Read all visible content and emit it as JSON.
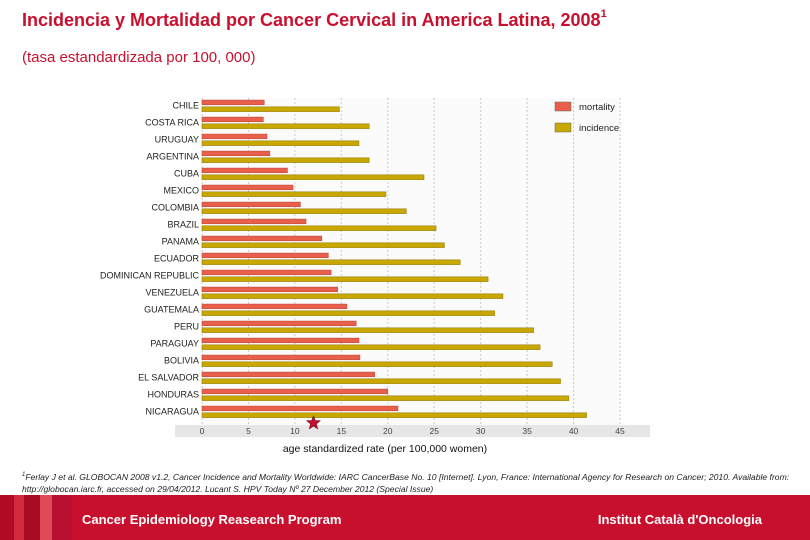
{
  "header": {
    "title": "Incidencia y Mortalidad por Cancer Cervical in America Latina, 2008",
    "title_sup": "1",
    "subtitle": "(tasa estandardizada por 100, 000)"
  },
  "chart_data": {
    "type": "bar",
    "orientation": "horizontal",
    "categories": [
      "CHILE",
      "COSTA RICA",
      "URUGUAY",
      "ARGENTINA",
      "CUBA",
      "MEXICO",
      "COLOMBIA",
      "BRAZIL",
      "PANAMA",
      "ECUADOR",
      "DOMINICAN REPUBLIC",
      "VENEZUELA",
      "GUATEMALA",
      "PERU",
      "PARAGUAY",
      "BOLIVIA",
      "EL SALVADOR",
      "HONDURAS",
      "NICARAGUA"
    ],
    "series": [
      {
        "name": "mortality",
        "color": "#e8604c",
        "values": [
          6.7,
          6.6,
          7.0,
          7.3,
          9.2,
          9.8,
          10.6,
          11.2,
          12.9,
          13.6,
          13.9,
          14.6,
          15.6,
          16.6,
          16.9,
          17.0,
          18.6,
          20.0,
          21.1
        ]
      },
      {
        "name": "incidence",
        "color": "#c8a800",
        "values": [
          14.8,
          18.0,
          16.9,
          18.0,
          23.9,
          19.8,
          22.0,
          25.2,
          26.1,
          27.8,
          30.8,
          32.4,
          31.5,
          35.7,
          36.4,
          37.7,
          38.6,
          39.5,
          41.4
        ]
      }
    ],
    "xlabel": "age standardized rate (per 100,000 women)",
    "xlim": [
      0,
      45
    ],
    "xticks": [
      "0",
      "5",
      "10",
      "15",
      "20",
      "25",
      "30",
      "35",
      "40",
      "45"
    ],
    "grid": "vertical dotted",
    "legend": "top-right",
    "marker": {
      "type": "star",
      "x": 12,
      "color": "#c8102e"
    }
  },
  "footnote": {
    "sup": "1",
    "text": "Ferlay J et al. GLOBOCAN 2008 v1.2, Cancer Incidence and Mortality Worldwide: IARC CancerBase No. 10 [Internet]. Lyon, France: International Agency for Research on Cancer; 2010. Available from: http://globocan.iarc.fr, accessed on 29/04/2012. Lucant S. HPV Today Nº 27 December 2012 (Special Issue)"
  },
  "footer": {
    "program": "Cancer Epidemiology Reasearch Program",
    "institute": "Institut Català d'Oncologia",
    "band_colors": [
      "#b00c26",
      "#d42a3e",
      "#a80a22",
      "#e04a58",
      "#b81030"
    ]
  }
}
